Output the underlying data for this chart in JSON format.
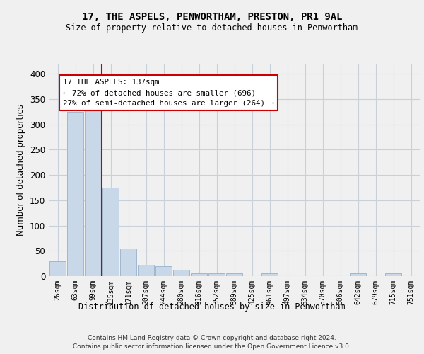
{
  "title_line1": "17, THE ASPELS, PENWORTHAM, PRESTON, PR1 9AL",
  "title_line2": "Size of property relative to detached houses in Penwortham",
  "xlabel": "Distribution of detached houses by size in Penwortham",
  "ylabel": "Number of detached properties",
  "footer_line1": "Contains HM Land Registry data © Crown copyright and database right 2024.",
  "footer_line2": "Contains public sector information licensed under the Open Government Licence v3.0.",
  "categories": [
    "26sqm",
    "63sqm",
    "99sqm",
    "135sqm",
    "171sqm",
    "207sqm",
    "244sqm",
    "280sqm",
    "316sqm",
    "352sqm",
    "389sqm",
    "425sqm",
    "461sqm",
    "497sqm",
    "534sqm",
    "570sqm",
    "606sqm",
    "642sqm",
    "679sqm",
    "715sqm",
    "751sqm"
  ],
  "values": [
    30,
    325,
    335,
    175,
    55,
    22,
    20,
    13,
    5,
    5,
    5,
    0,
    5,
    0,
    0,
    0,
    0,
    5,
    0,
    5,
    0
  ],
  "bar_color": "#c8d8e8",
  "bar_edge_color": "#a0b8d0",
  "grid_color": "#c8d0da",
  "annotation_line_color": "#cc0000",
  "annotation_box_text": "17 THE ASPELS: 137sqm\n← 72% of detached houses are smaller (696)\n27% of semi-detached houses are larger (264) →",
  "ylim": [
    0,
    420
  ],
  "yticks": [
    0,
    50,
    100,
    150,
    200,
    250,
    300,
    350,
    400
  ],
  "background_color": "#f0f0f0"
}
